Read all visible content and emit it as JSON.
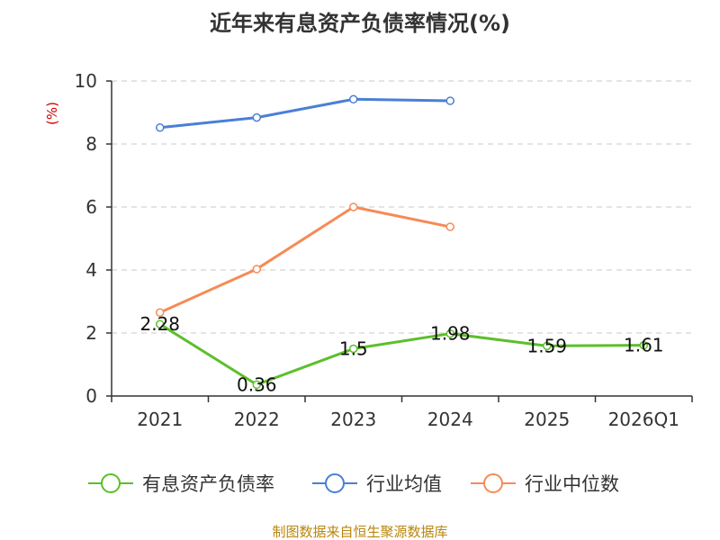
{
  "chart_data": {
    "type": "line",
    "title": "近年来有息资产负债率情况(%)",
    "ylabel": "(%)",
    "categories": [
      "2021",
      "2022",
      "2023",
      "2024",
      "2025",
      "2026Q1"
    ],
    "ylim": [
      0,
      10
    ],
    "yticks": [
      "0",
      "2",
      "4",
      "6",
      "8",
      "10"
    ],
    "grid": true,
    "legend_position": "bottom",
    "series": [
      {
        "name": "有息资产负债率",
        "color": "#5cbf2a",
        "values": [
          2.28,
          0.36,
          1.5,
          1.98,
          1.59,
          1.61
        ],
        "labels": [
          "2.28",
          "0.36",
          "1.5",
          "1.98",
          "1.59",
          "1.61"
        ]
      },
      {
        "name": "行业均值",
        "color": "#4a7fd6",
        "values": [
          8.52,
          8.84,
          9.42,
          9.37,
          null,
          null
        ]
      },
      {
        "name": "行业中位数",
        "color": "#f58b56",
        "values": [
          2.65,
          4.03,
          6.0,
          5.37,
          null,
          null
        ]
      }
    ]
  },
  "source": "制图数据来自恒生聚源数据库"
}
